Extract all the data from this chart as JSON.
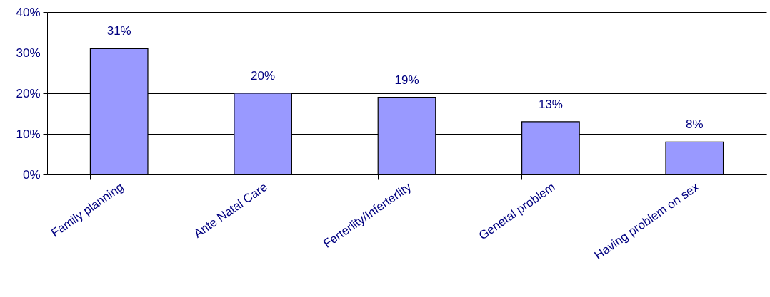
{
  "chart_data": {
    "type": "bar",
    "categories": [
      "Family planning",
      "Ante Natal Care",
      "Ferterlity/Inferterlity",
      "Genetal problem",
      "Having problem on sex"
    ],
    "values": [
      31,
      20,
      19,
      13,
      8
    ],
    "value_labels": [
      "31%",
      "20%",
      "19%",
      "13%",
      "8%"
    ],
    "color": "#9999ff",
    "ylim": [
      0,
      40
    ],
    "yticks": [
      {
        "value": 0,
        "label": "0%"
      },
      {
        "value": 10,
        "label": "10%"
      },
      {
        "value": 20,
        "label": "20%"
      },
      {
        "value": 30,
        "label": "30%"
      },
      {
        "value": 40,
        "label": "40%"
      }
    ],
    "grid": "y"
  }
}
